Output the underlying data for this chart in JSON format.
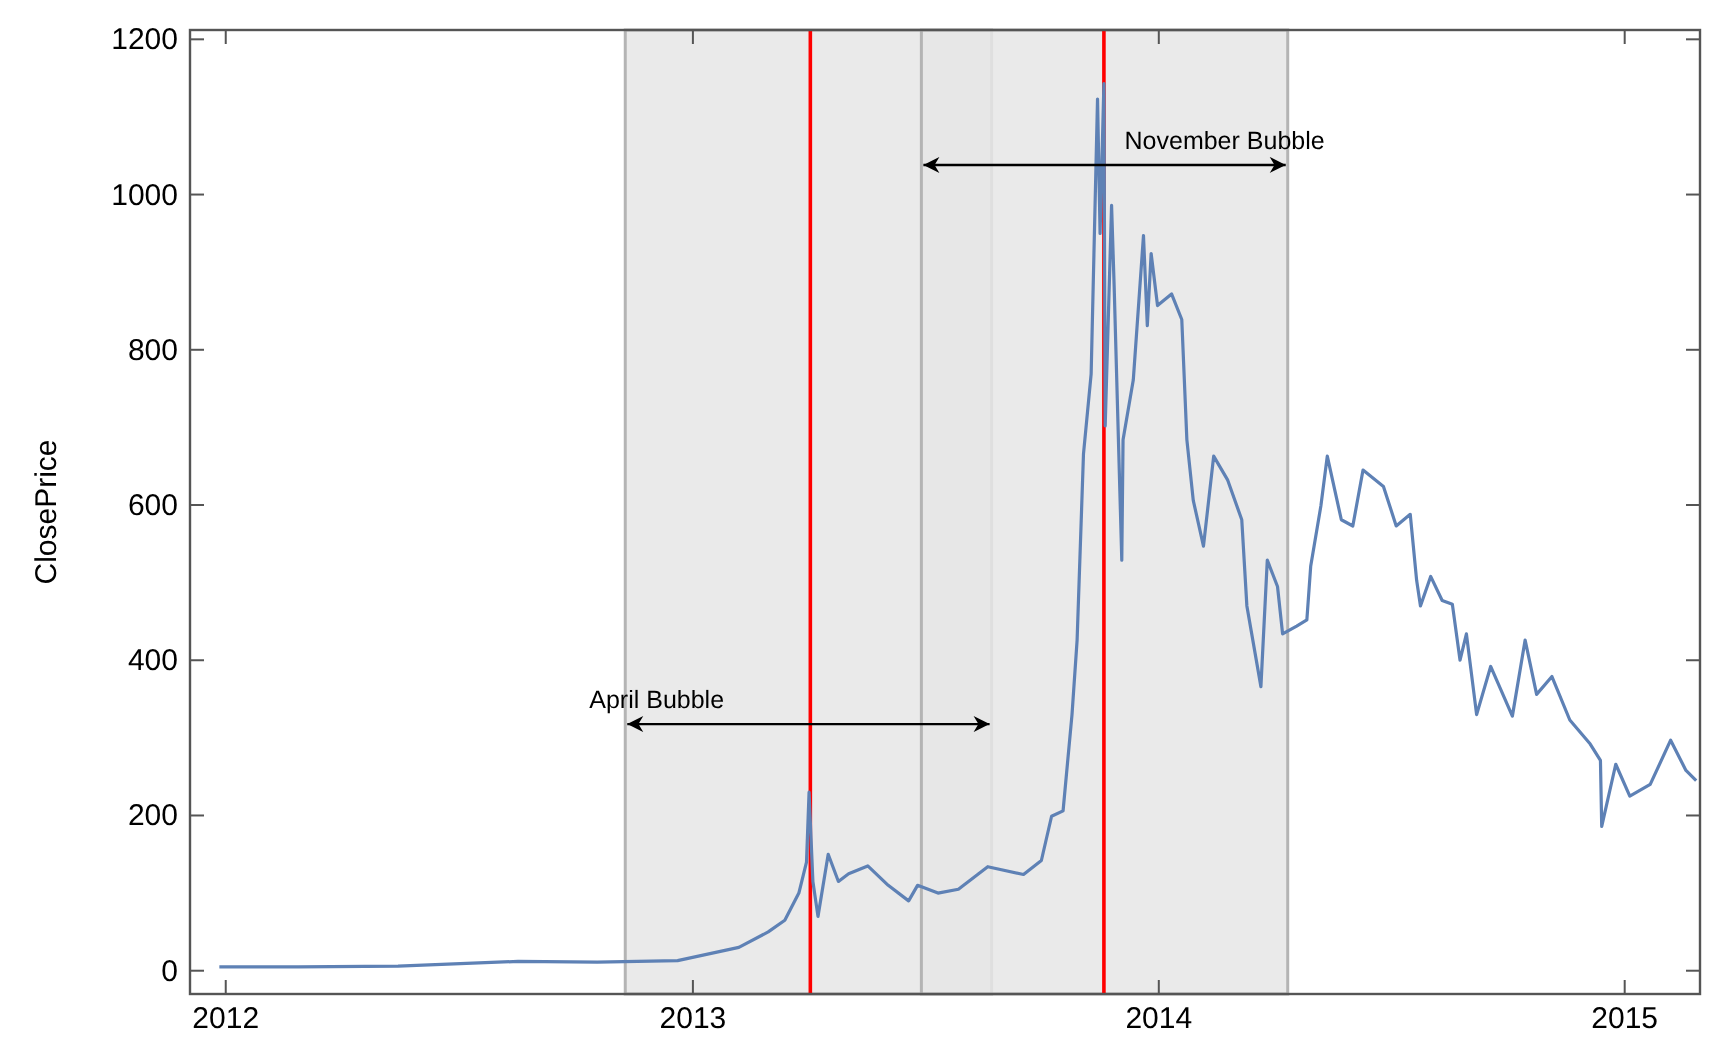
{
  "chart_data": {
    "type": "line",
    "ylabel": "ClosePrice",
    "xlim": [
      "2011-12-04",
      "2015-03-01"
    ],
    "ylim": [
      -30,
      1212
    ],
    "xticks": [
      "2012",
      "2013",
      "2014",
      "2015"
    ],
    "yticks": [
      0,
      200,
      400,
      600,
      800,
      1000,
      1200
    ],
    "grid": false,
    "x": [
      "2011-12-27",
      "2012-02-27",
      "2012-05-15",
      "2012-08-17",
      "2012-10-18",
      "2012-12-20",
      "2013-02-06",
      "2013-03-01",
      "2013-03-14",
      "2013-03-25",
      "2013-03-31",
      "2013-04-02",
      "2013-04-05",
      "2013-04-09",
      "2013-04-17",
      "2013-04-25",
      "2013-05-03",
      "2013-05-18",
      "2013-06-03",
      "2013-06-19",
      "2013-06-26",
      "2013-07-12",
      "2013-07-28",
      "2013-08-20",
      "2013-09-17",
      "2013-10-01",
      "2013-10-09",
      "2013-10-18",
      "2013-10-25",
      "2013-10-29",
      "2013-11-03",
      "2013-11-09",
      "2013-11-14",
      "2013-11-16",
      "2013-11-19",
      "2013-11-20",
      "2013-11-25",
      "2013-11-27",
      "2013-12-03",
      "2013-12-04",
      "2013-12-12",
      "2013-12-20",
      "2013-12-23",
      "2013-12-26",
      "2013-12-31",
      "2014-01-11",
      "2014-01-19",
      "2014-01-23",
      "2014-01-28",
      "2014-02-05",
      "2014-02-13",
      "2014-02-24",
      "2014-03-07",
      "2014-03-11",
      "2014-03-22",
      "2014-03-27",
      "2014-04-04",
      "2014-04-08",
      "2014-04-19",
      "2014-04-27",
      "2014-04-30",
      "2014-05-08",
      "2014-05-13",
      "2014-05-24",
      "2014-06-02",
      "2014-06-10",
      "2014-06-26",
      "2014-07-06",
      "2014-07-17",
      "2014-07-22",
      "2014-07-25",
      "2014-08-02",
      "2014-08-11",
      "2014-08-19",
      "2014-08-25",
      "2014-08-30",
      "2014-09-07",
      "2014-09-18",
      "2014-10-05",
      "2014-10-15",
      "2014-10-24",
      "2014-11-05",
      "2014-11-19",
      "2014-12-05",
      "2014-12-13",
      "2014-12-14",
      "2014-12-25",
      "2015-01-05",
      "2015-01-21",
      "2015-02-06",
      "2015-02-18",
      "2015-02-26"
    ],
    "series": [
      {
        "color": "#5e81b5",
        "values": [
          5,
          5,
          6,
          12,
          11,
          13,
          30,
          50,
          65,
          100,
          140,
          230,
          115,
          70,
          150,
          115,
          125,
          135,
          110,
          90,
          110,
          100,
          105,
          134,
          124,
          142,
          199,
          206,
          330,
          426,
          666,
          769,
          1123,
          950,
          1143,
          702,
          986,
          883,
          529,
          684,
          761,
          947,
          831,
          924,
          857,
          872,
          839,
          684,
          606,
          547,
          663,
          632,
          581,
          470,
          366,
          529,
          495,
          434,
          444,
          452,
          521,
          599,
          663,
          581,
          573,
          645,
          624,
          573,
          588,
          503,
          470,
          508,
          477,
          472,
          400,
          434,
          330,
          392,
          328,
          426,
          356,
          379,
          323,
          292,
          271,
          186,
          266,
          225,
          240,
          297,
          258,
          245
        ]
      }
    ],
    "bands": [
      {
        "axis": "x",
        "from": "2012-11-09",
        "to": "2013-08-23",
        "label": "April Bubble",
        "color": "#e6e6e6"
      },
      {
        "axis": "x",
        "from": "2013-06-29",
        "to": "2014-04-12",
        "label": "November Bubble",
        "color": "#e6e6e6"
      }
    ],
    "ref_lines": [
      {
        "axis": "x",
        "value": "2013-04-03",
        "color": "#ff0000"
      },
      {
        "axis": "x",
        "value": "2013-11-19",
        "color": "#ff0000"
      }
    ]
  }
}
